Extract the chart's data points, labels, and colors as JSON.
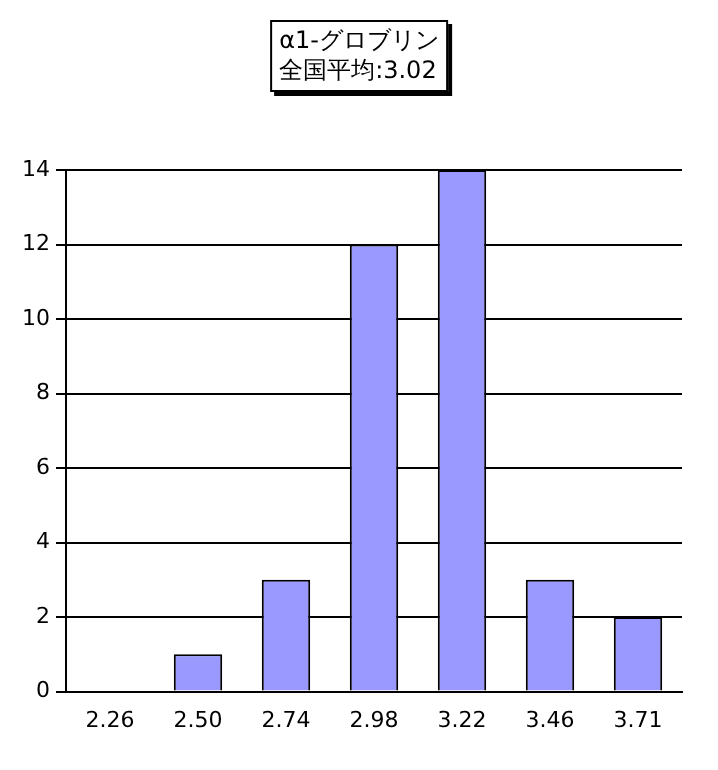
{
  "chart_data": {
    "type": "bar",
    "title": "α1-グロブリン",
    "subtitle": "全国平均:3.02",
    "categories": [
      "2.26",
      "2.50",
      "2.74",
      "2.98",
      "3.22",
      "3.46",
      "3.71"
    ],
    "values": [
      0,
      1,
      3,
      12,
      14,
      3,
      2
    ],
    "color": "#9999ff",
    "ylim": [
      0,
      14
    ],
    "yticks": [
      0,
      2,
      4,
      6,
      8,
      10,
      12,
      14
    ],
    "grid": "y"
  }
}
